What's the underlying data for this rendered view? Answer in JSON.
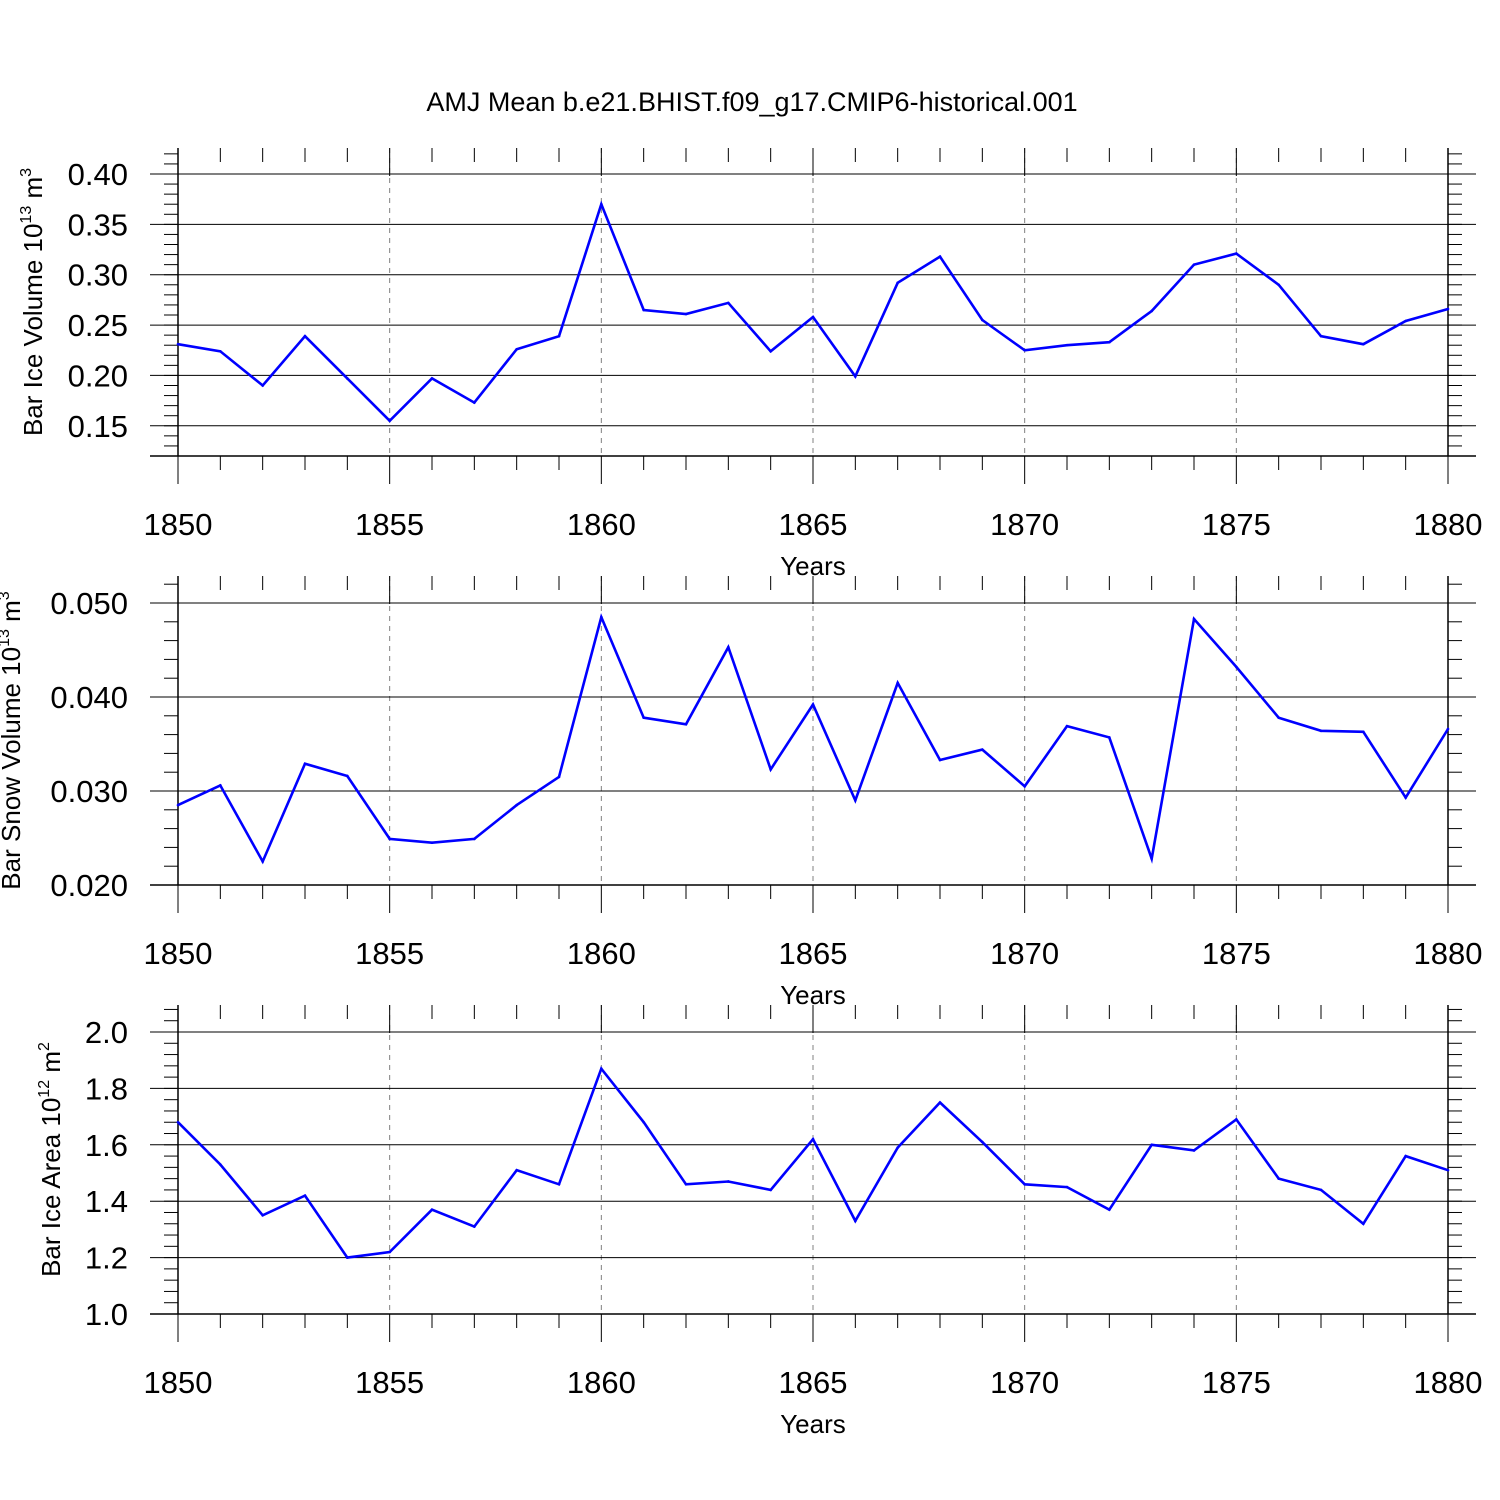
{
  "figure": {
    "title": "AMJ Mean b.e21.BHIST.f09_g17.CMIP6-historical.001"
  },
  "colors": {
    "series": "#0000ff",
    "axis": "#000000",
    "grid": "#808080"
  },
  "chart_data": [
    {
      "type": "line",
      "xlabel": "Years",
      "ylabel": {
        "text": "Bar Ice Volume 10",
        "exp": "13",
        "unit": " m",
        "unit_exp": "3"
      },
      "xlim": [
        1850,
        1880
      ],
      "ylim": [
        0.12,
        0.4
      ],
      "x_ticks": [
        1850,
        1855,
        1860,
        1865,
        1870,
        1875,
        1880
      ],
      "y_ticks": [
        0.15,
        0.2,
        0.25,
        0.3,
        0.35,
        0.4
      ],
      "y_tick_labels": [
        "0.15",
        "0.20",
        "0.25",
        "0.30",
        "0.35",
        "0.40"
      ],
      "y_minor_step": 0.01,
      "grid": "vertical-dashed",
      "x": [
        1850,
        1851,
        1852,
        1853,
        1854,
        1855,
        1856,
        1857,
        1858,
        1859,
        1860,
        1861,
        1862,
        1863,
        1864,
        1865,
        1866,
        1867,
        1868,
        1869,
        1870,
        1871,
        1872,
        1873,
        1874,
        1875,
        1876,
        1877,
        1878,
        1879,
        1880
      ],
      "values": [
        0.231,
        0.224,
        0.19,
        0.239,
        0.197,
        0.155,
        0.197,
        0.173,
        0.226,
        0.239,
        0.37,
        0.265,
        0.261,
        0.272,
        0.224,
        0.258,
        0.199,
        0.292,
        0.318,
        0.255,
        0.225,
        0.23,
        0.233,
        0.264,
        0.31,
        0.321,
        0.29,
        0.239,
        0.231,
        0.254,
        0.266
      ]
    },
    {
      "type": "line",
      "xlabel": "Years",
      "ylabel": {
        "text": "Bar Snow Volume 10",
        "exp": "13",
        "unit": " m",
        "unit_exp": "3"
      },
      "xlim": [
        1850,
        1880
      ],
      "ylim": [
        0.02,
        0.05
      ],
      "x_ticks": [
        1850,
        1855,
        1860,
        1865,
        1870,
        1875,
        1880
      ],
      "y_ticks": [
        0.02,
        0.03,
        0.04,
        0.05
      ],
      "y_tick_labels": [
        "0.020",
        "0.030",
        "0.040",
        "0.050"
      ],
      "y_minor_step": 0.002,
      "grid": "vertical-dashed",
      "x": [
        1850,
        1851,
        1852,
        1853,
        1854,
        1855,
        1856,
        1857,
        1858,
        1859,
        1860,
        1861,
        1862,
        1863,
        1864,
        1865,
        1866,
        1867,
        1868,
        1869,
        1870,
        1871,
        1872,
        1873,
        1874,
        1875,
        1876,
        1877,
        1878,
        1879,
        1880
      ],
      "values": [
        0.0285,
        0.0306,
        0.0225,
        0.0329,
        0.0316,
        0.0249,
        0.0245,
        0.0249,
        0.0285,
        0.0315,
        0.0485,
        0.0378,
        0.0371,
        0.0453,
        0.0323,
        0.0392,
        0.029,
        0.0415,
        0.0333,
        0.0344,
        0.0305,
        0.0369,
        0.0357,
        0.0228,
        0.0483,
        0.0432,
        0.0378,
        0.0364,
        0.0363,
        0.0293,
        0.0366
      ]
    },
    {
      "type": "line",
      "xlabel": "Years",
      "ylabel": {
        "text": "Bar Ice Area 10",
        "exp": "12",
        "unit": " m",
        "unit_exp": "2"
      },
      "xlim": [
        1850,
        1880
      ],
      "ylim": [
        1.0,
        2.0
      ],
      "x_ticks": [
        1850,
        1855,
        1860,
        1865,
        1870,
        1875,
        1880
      ],
      "y_ticks": [
        1.0,
        1.2,
        1.4,
        1.6,
        1.8,
        2.0
      ],
      "y_tick_labels": [
        "1.0",
        "1.2",
        "1.4",
        "1.6",
        "1.8",
        "2.0"
      ],
      "y_minor_step": 0.04,
      "grid": "vertical-dashed",
      "x": [
        1850,
        1851,
        1852,
        1853,
        1854,
        1855,
        1856,
        1857,
        1858,
        1859,
        1860,
        1861,
        1862,
        1863,
        1864,
        1865,
        1866,
        1867,
        1868,
        1869,
        1870,
        1871,
        1872,
        1873,
        1874,
        1875,
        1876,
        1877,
        1878,
        1879,
        1880
      ],
      "values": [
        1.68,
        1.53,
        1.35,
        1.42,
        1.2,
        1.22,
        1.37,
        1.31,
        1.51,
        1.46,
        1.87,
        1.68,
        1.46,
        1.47,
        1.44,
        1.62,
        1.33,
        1.59,
        1.75,
        1.61,
        1.46,
        1.45,
        1.37,
        1.6,
        1.58,
        1.69,
        1.48,
        1.44,
        1.32,
        1.56,
        1.51
      ]
    }
  ]
}
